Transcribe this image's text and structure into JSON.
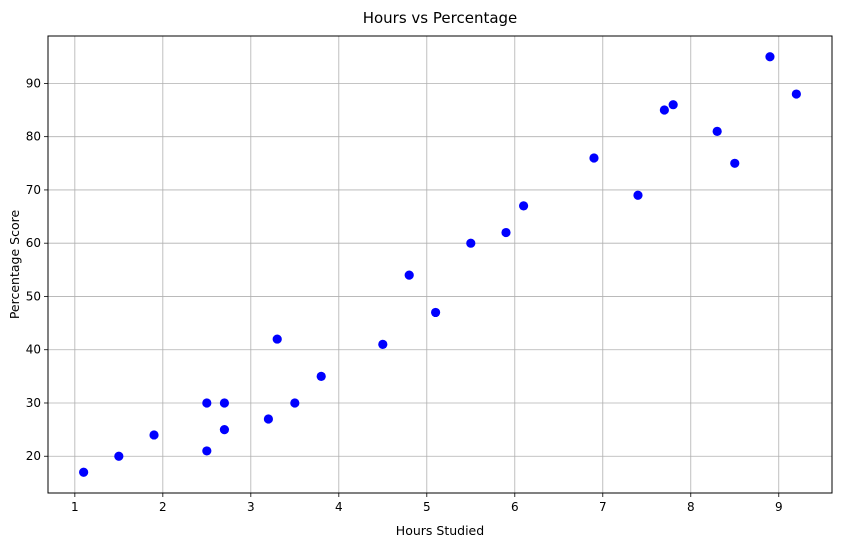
{
  "chart_data": {
    "type": "scatter",
    "title": "Hours vs Percentage",
    "xlabel": "Hours Studied",
    "ylabel": "Percentage Score",
    "xlim": [
      0.695,
      9.605
    ],
    "ylim": [
      13.1,
      98.9
    ],
    "xticks": [
      1,
      2,
      3,
      4,
      5,
      6,
      7,
      8,
      9
    ],
    "yticks": [
      20,
      30,
      40,
      50,
      60,
      70,
      80,
      90
    ],
    "grid": true,
    "point_color": "#0000ff",
    "points": [
      {
        "x": 1.1,
        "y": 17
      },
      {
        "x": 1.5,
        "y": 20
      },
      {
        "x": 1.9,
        "y": 24
      },
      {
        "x": 2.5,
        "y": 21
      },
      {
        "x": 2.5,
        "y": 30
      },
      {
        "x": 2.7,
        "y": 25
      },
      {
        "x": 2.7,
        "y": 30
      },
      {
        "x": 3.2,
        "y": 27
      },
      {
        "x": 3.3,
        "y": 42
      },
      {
        "x": 3.5,
        "y": 30
      },
      {
        "x": 3.8,
        "y": 35
      },
      {
        "x": 4.5,
        "y": 41
      },
      {
        "x": 4.8,
        "y": 54
      },
      {
        "x": 5.1,
        "y": 47
      },
      {
        "x": 5.5,
        "y": 60
      },
      {
        "x": 5.9,
        "y": 62
      },
      {
        "x": 6.1,
        "y": 67
      },
      {
        "x": 6.9,
        "y": 76
      },
      {
        "x": 7.4,
        "y": 69
      },
      {
        "x": 7.7,
        "y": 85
      },
      {
        "x": 7.8,
        "y": 86
      },
      {
        "x": 8.3,
        "y": 81
      },
      {
        "x": 8.5,
        "y": 75
      },
      {
        "x": 8.9,
        "y": 95
      },
      {
        "x": 9.2,
        "y": 88
      }
    ]
  }
}
